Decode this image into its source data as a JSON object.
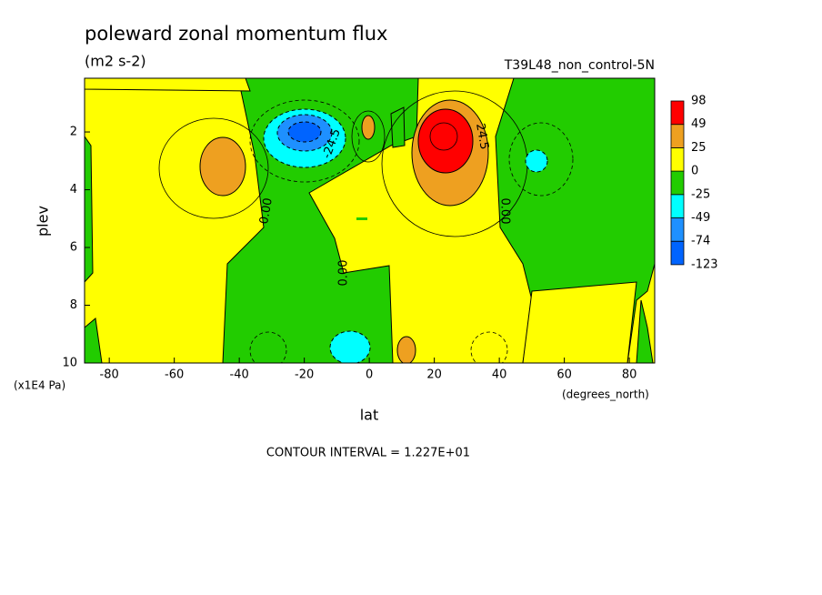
{
  "chart_data": {
    "type": "contour",
    "title": "poleward zonal momentum flux",
    "subtitle": "(m2 s-2)",
    "dataset": "T39L48_non_control-5N",
    "x_label": "lat",
    "x_units": "(degrees_north)",
    "y_label": "plev",
    "y_units": "(x1E4 Pa)",
    "xlim": [
      -87.6,
      87.8
    ],
    "xticks": [
      -80,
      -60,
      -40,
      -20,
      0,
      20,
      40,
      60,
      80
    ],
    "ylim": [
      10,
      0.14
    ],
    "yticks": [
      2,
      4,
      6,
      8,
      10
    ],
    "levels": [
      -123,
      -74,
      -49,
      -25,
      0,
      25,
      49,
      98
    ],
    "colors": [
      "#0064ff",
      "#1e90ff",
      "#00ffff",
      "#22cc00",
      "#ffff00",
      "#eea020",
      "#ff0000"
    ],
    "contour_labels": [
      {
        "value": -24.5,
        "label": "-24.5"
      },
      {
        "value": 24.5,
        "label": "24.5"
      },
      {
        "value": 0,
        "label": "0.00"
      },
      {
        "value": 0,
        "label": "0.00"
      },
      {
        "value": 0,
        "label": "0.00"
      }
    ],
    "note": "CONTOUR INTERVAL = 1.227E+01"
  }
}
